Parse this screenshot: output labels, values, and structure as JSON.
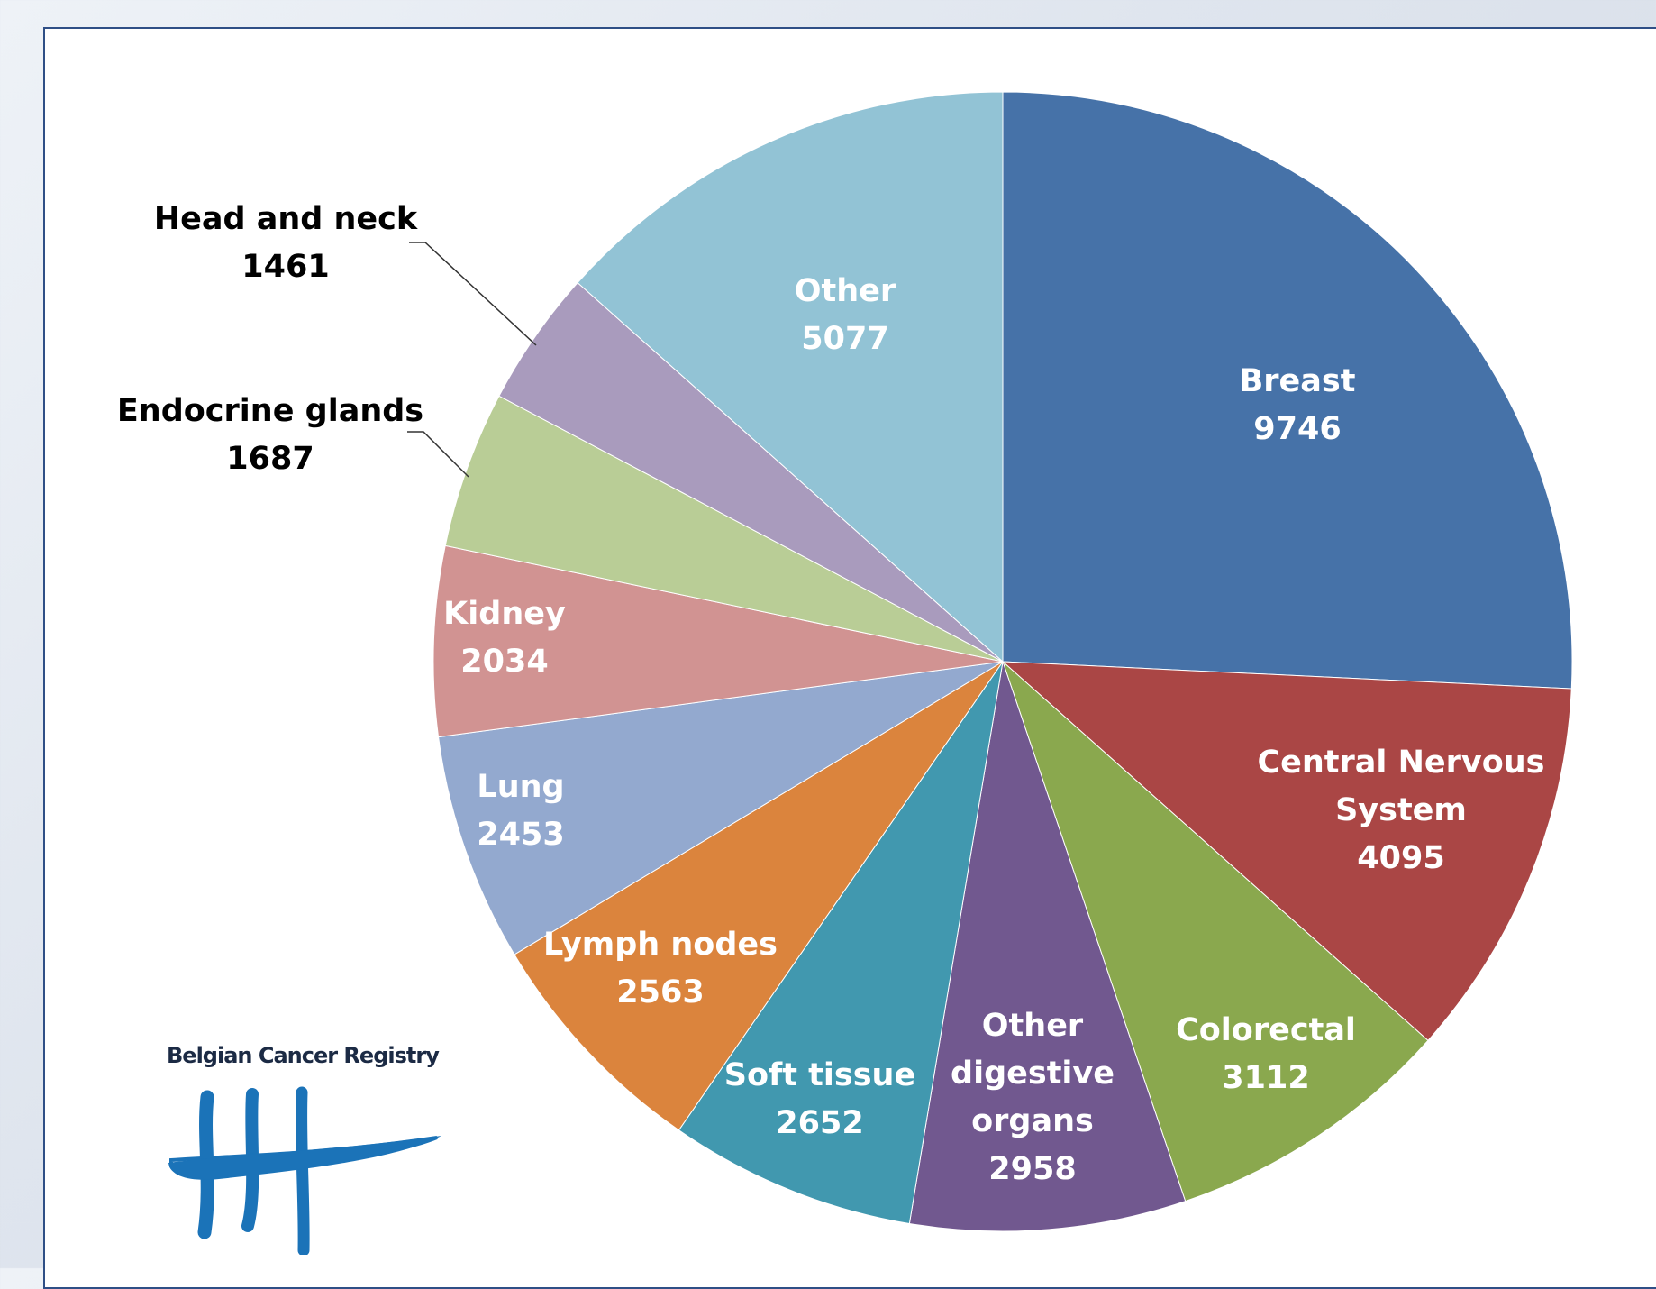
{
  "chart_data": {
    "type": "pie",
    "title": "",
    "slices": [
      {
        "label": "Breast",
        "value": 9746,
        "color": "#4672a8",
        "label_color": "#ffffff"
      },
      {
        "label": "Central Nervous System",
        "value": 4095,
        "color": "#aa4645",
        "label_color": "#ffffff"
      },
      {
        "label": "Colorectal",
        "value": 3112,
        "color": "#8aa84e",
        "label_color": "#ffffff"
      },
      {
        "label": "Other digestive organs",
        "value": 2958,
        "color": "#71588f",
        "label_color": "#ffffff"
      },
      {
        "label": "Soft tissue",
        "value": 2652,
        "color": "#4198af",
        "label_color": "#ffffff"
      },
      {
        "label": "Lymph nodes",
        "value": 2563,
        "color": "#db843d",
        "label_color": "#ffffff"
      },
      {
        "label": "Lung",
        "value": 2453,
        "color": "#93a9cf",
        "label_color": "#ffffff"
      },
      {
        "label": "Kidney",
        "value": 2034,
        "color": "#d19392",
        "label_color": "#ffffff"
      },
      {
        "label": "Endocrine glands",
        "value": 1687,
        "color": "#b9cd96",
        "label_color": "#000000"
      },
      {
        "label": "Head and neck",
        "value": 1461,
        "color": "#a99bbd",
        "label_color": "#000000"
      },
      {
        "label": "Other",
        "value": 5077,
        "color": "#92c3d5",
        "label_color": "#ffffff"
      }
    ],
    "data_labels": [
      {
        "lines": [
          "Breast",
          "9746"
        ]
      },
      {
        "lines": [
          "Central Nervous",
          "System",
          "4095"
        ]
      },
      {
        "lines": [
          "Colorectal",
          "3112"
        ]
      },
      {
        "lines": [
          "Other",
          "digestive",
          "organs",
          "2958"
        ]
      },
      {
        "lines": [
          "Soft tissue",
          "2652"
        ]
      },
      {
        "lines": [
          "Lymph nodes",
          "2563"
        ]
      },
      {
        "lines": [
          "Lung",
          "2453"
        ]
      },
      {
        "lines": [
          "Kidney",
          "2034"
        ]
      },
      {
        "lines": [
          "Endocrine glands",
          "1687"
        ]
      },
      {
        "lines": [
          "Head and neck",
          "1461"
        ]
      },
      {
        "lines": [
          "Other",
          "5077"
        ]
      }
    ],
    "start_angle_deg": 0,
    "direction": "clockwise",
    "legend": "none"
  },
  "logo": {
    "text": "Belgian Cancer Registry",
    "color": "#1b73b8"
  }
}
